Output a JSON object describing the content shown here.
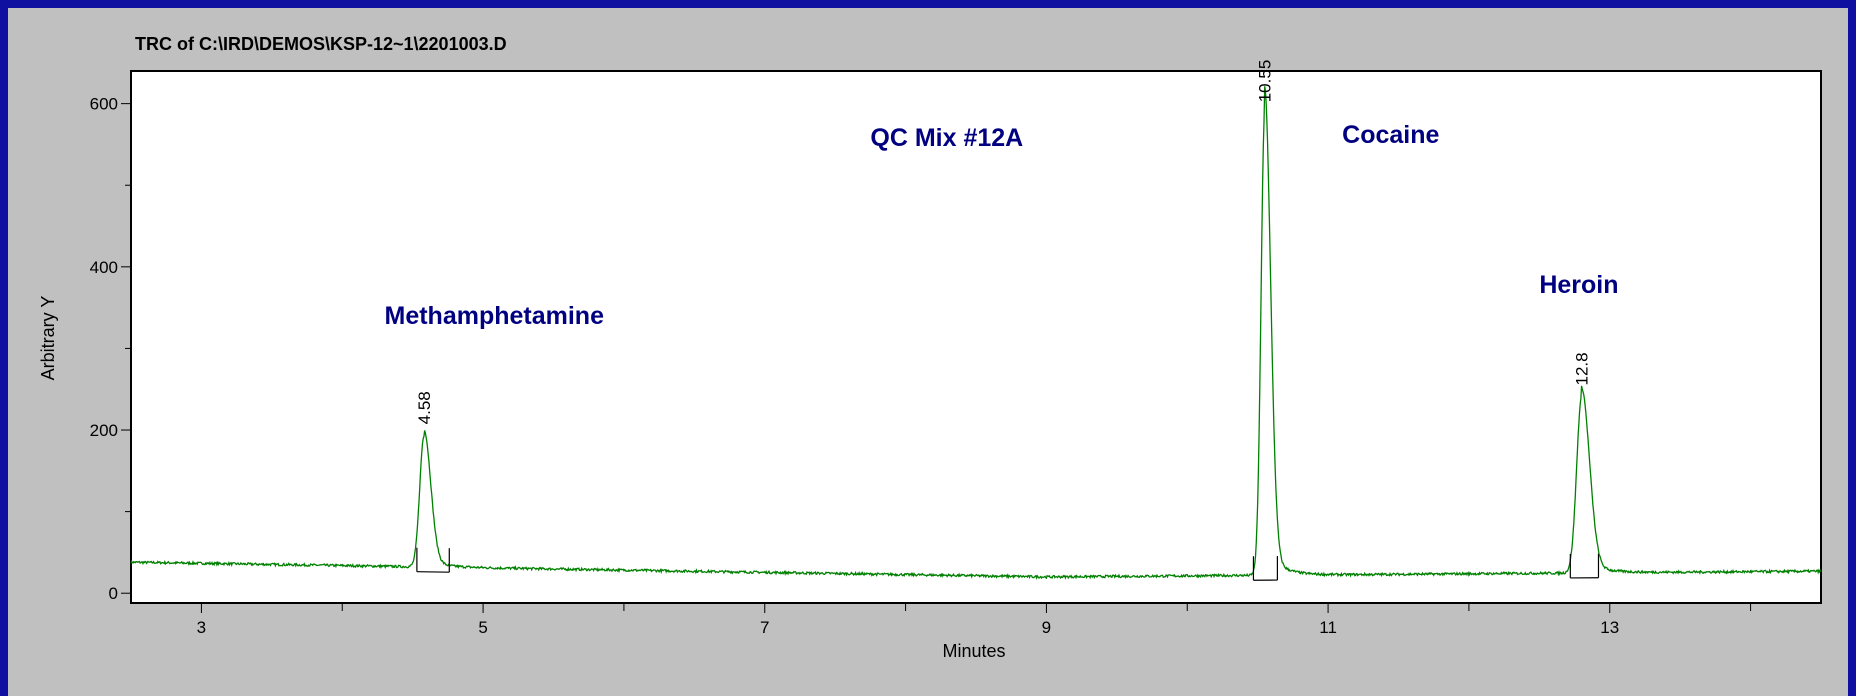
{
  "chart_data": {
    "type": "line",
    "title": "TRC of C:\\IRD\\DEMOS\\KSP-12~1\\2201003.D",
    "xlabel": "Minutes",
    "ylabel": "Arbitrary Y",
    "xlim": [
      2.5,
      14.5
    ],
    "ylim": [
      -12,
      640
    ],
    "x_ticks_major": [
      3,
      5,
      7,
      9,
      11,
      13
    ],
    "x_ticks_minor": [
      4,
      6,
      8,
      10,
      12,
      14
    ],
    "y_ticks_major": [
      0,
      200,
      400,
      600
    ],
    "y_ticks_minor": [
      100,
      300,
      500
    ],
    "grid": false,
    "series_color": "#008000",
    "annotations": [
      {
        "text": "QC Mix #12A",
        "x": 7.75,
        "y": 548,
        "color": "#000080"
      },
      {
        "text": "Methamphetamine",
        "x": 4.3,
        "y": 330,
        "color": "#000080"
      },
      {
        "text": "Cocaine",
        "x": 11.1,
        "y": 552,
        "color": "#000080"
      },
      {
        "text": "Heroin",
        "x": 12.5,
        "y": 368,
        "color": "#000080"
      }
    ],
    "peaks": [
      {
        "label": "4.58",
        "x": 4.58,
        "height": 160,
        "width": 0.03,
        "integration": [
          4.53,
          4.76
        ]
      },
      {
        "label": "10.55",
        "x": 10.55,
        "height": 565,
        "width": 0.026,
        "integration": [
          10.47,
          10.64
        ]
      },
      {
        "label": "12.8",
        "x": 12.8,
        "height": 215,
        "width": 0.035,
        "integration": [
          12.72,
          12.92
        ]
      }
    ],
    "baseline": {
      "start": 38,
      "mid": 20,
      "end": 27,
      "mid_x": 9.0
    }
  }
}
